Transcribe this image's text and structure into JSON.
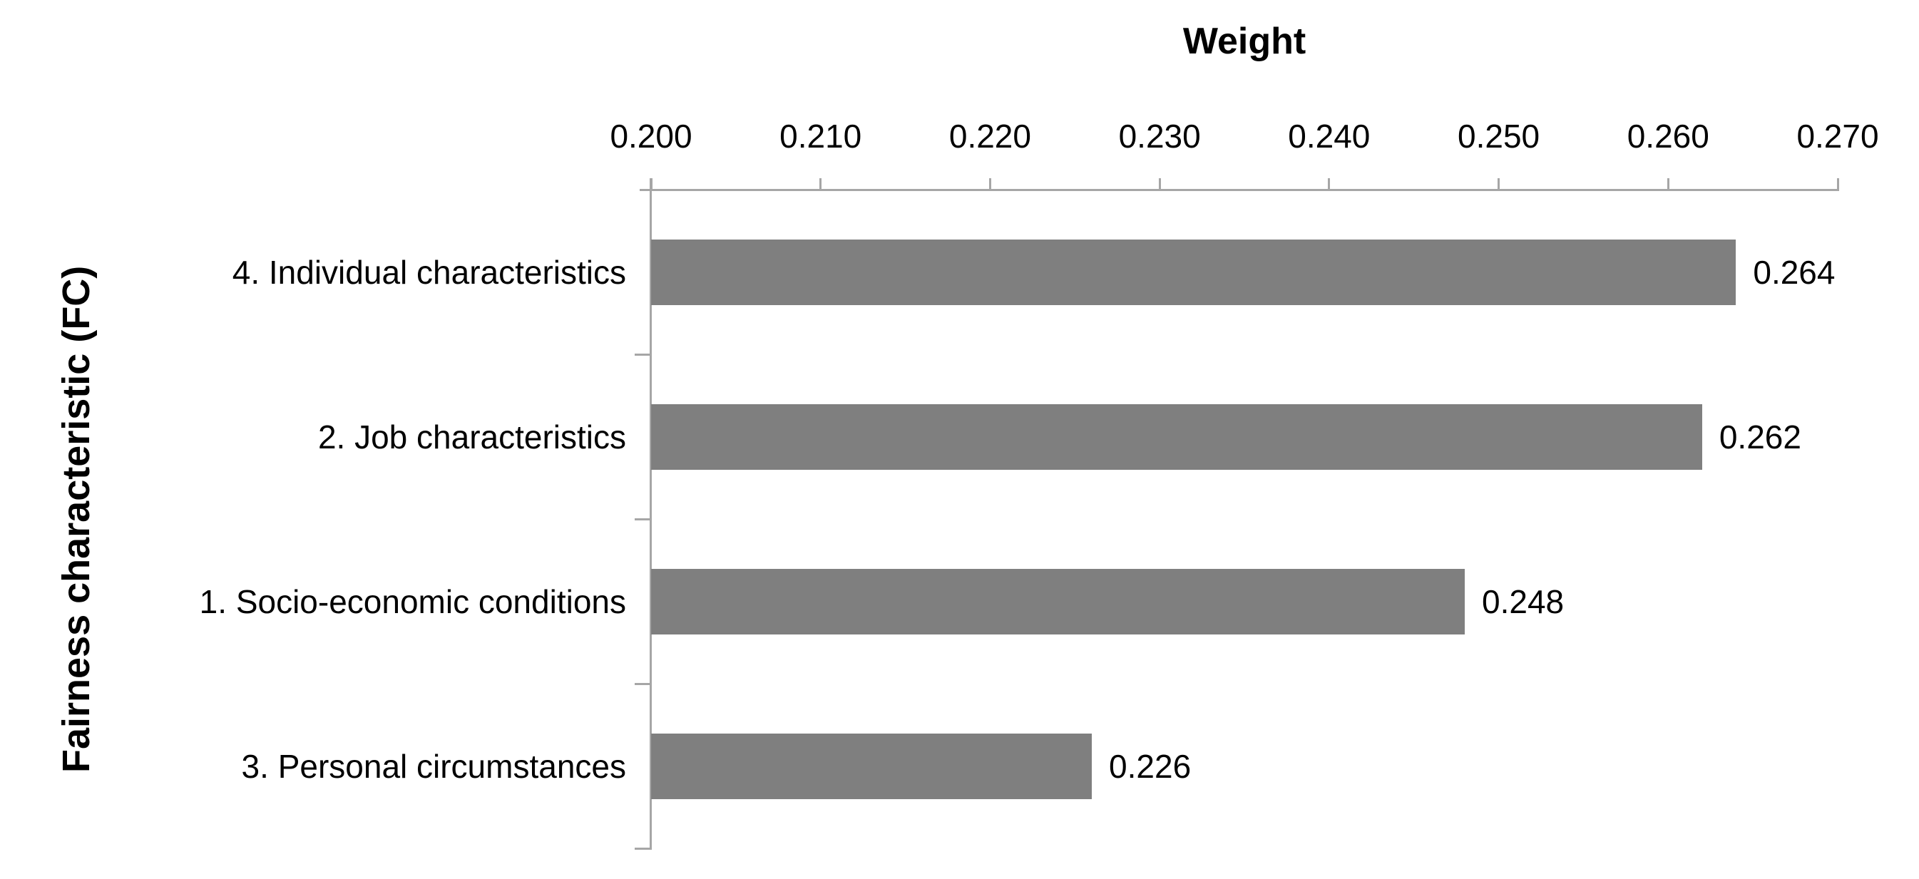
{
  "chart_data": {
    "type": "bar",
    "orientation": "horizontal",
    "title": "Weight",
    "xlabel": "Weight",
    "ylabel": "Fairness characteristic (FC)",
    "categories": [
      "4. Individual characteristics",
      "2. Job characteristics",
      "1. Socio-economic conditions",
      "3. Personal circumstances"
    ],
    "values": [
      0.264,
      0.262,
      0.248,
      0.226
    ],
    "value_labels": [
      "0.264",
      "0.262",
      "0.248",
      "0.226"
    ],
    "xlim": [
      0.2,
      0.27
    ],
    "x_ticks": [
      "0.200",
      "0.210",
      "0.220",
      "0.230",
      "0.240",
      "0.250",
      "0.260",
      "0.270"
    ],
    "x_tick_values": [
      0.2,
      0.21,
      0.22,
      0.23,
      0.24,
      0.25,
      0.26,
      0.27
    ],
    "grid": false,
    "legend": null,
    "bar_color": "#7f7f7f",
    "axis_color": "#a6a6a6",
    "text_color": "#000000"
  }
}
